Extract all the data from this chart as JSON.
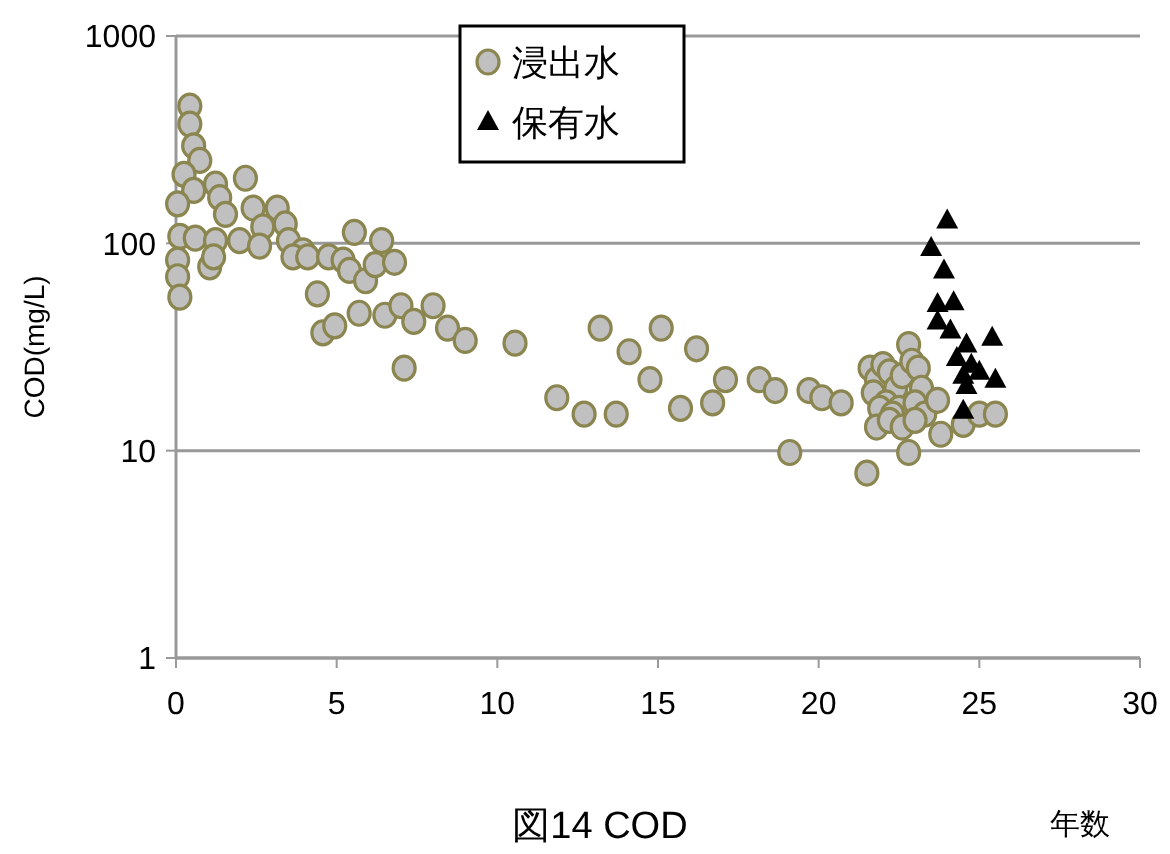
{
  "chart_data": {
    "type": "scatter",
    "title": "図14 COD",
    "xlabel": "年数",
    "ylabel": "COD(mg/L)",
    "xlim": [
      0,
      30
    ],
    "xticks": [
      0,
      5,
      10,
      15,
      20,
      25,
      30
    ],
    "ylim": [
      1,
      1000
    ],
    "yticks": [
      1,
      10,
      100,
      1000
    ],
    "log": "y",
    "grid": "y",
    "legend": "top",
    "series": [
      {
        "name": "浸出水",
        "color": "#c0c0c0",
        "marker": "circle",
        "x": [
          0.43,
          0.43,
          0.55,
          0.74,
          0.25,
          1.23,
          2.16,
          0.55,
          0.05,
          1.36,
          1.54,
          2.4,
          3.15,
          3.4,
          2.7,
          0.12,
          0.6,
          1.23,
          1.98,
          2.6,
          3.5,
          5.55,
          6.4,
          3.95,
          3.64,
          4.1,
          4.75,
          5.2,
          5.4,
          5.9,
          6.2,
          6.8,
          0.05,
          0.05,
          0.12,
          1.05,
          1.17,
          4.4,
          5.7,
          6.5,
          7.0,
          7.4,
          8.0,
          8.45,
          9.0,
          4.57,
          4.94,
          7.1,
          10.55,
          13.2,
          14.1,
          15.1,
          16.2,
          11.85,
          12.7,
          13.7,
          14.75,
          15.7,
          16.7,
          17.1,
          18.15,
          18.65,
          19.7,
          19.1,
          20.1,
          20.7,
          21.5,
          22.8,
          22.8,
          21.6,
          21.8,
          22.0,
          22.2,
          22.4,
          22.6,
          22.9,
          23.1,
          21.7,
          22.1,
          22.5,
          23.2,
          21.9,
          22.3,
          23.0,
          23.3,
          21.8,
          22.2,
          22.6,
          23.0,
          23.7,
          23.8,
          24.5,
          25.0,
          25.5
        ],
        "values": [
          459,
          376,
          295,
          251,
          215,
          193,
          206,
          180,
          155,
          166,
          138,
          148,
          148,
          124,
          120,
          108,
          106,
          103,
          103,
          97,
          103,
          113,
          103,
          92,
          86,
          86,
          86,
          83,
          74,
          66,
          79,
          81,
          83,
          69,
          55,
          77,
          86,
          57,
          46,
          45,
          50,
          42,
          50,
          39,
          34,
          37,
          40,
          25,
          33,
          39,
          30,
          39,
          31,
          18,
          15,
          15,
          22,
          16,
          17,
          22,
          22,
          19.5,
          19.5,
          9.8,
          18,
          17,
          7.8,
          9.8,
          32.5,
          25,
          22,
          26,
          24,
          20,
          23,
          27,
          25,
          19,
          17,
          16,
          20,
          16,
          15,
          17,
          15,
          13,
          14,
          13,
          14,
          17.5,
          12,
          13.4,
          15,
          15
        ]
      },
      {
        "name": "保有水",
        "color": "#000000",
        "marker": "triangle",
        "x": [
          24.0,
          23.5,
          23.9,
          23.7,
          24.2,
          23.7,
          24.1,
          24.6,
          25.4,
          24.3,
          24.75,
          25.0,
          24.5,
          25.5,
          24.6,
          24.5
        ],
        "values": [
          129,
          95,
          74,
          51,
          52,
          42,
          38,
          32.5,
          35,
          28,
          26,
          24,
          23,
          22,
          20.5,
          15.6
        ]
      }
    ]
  }
}
